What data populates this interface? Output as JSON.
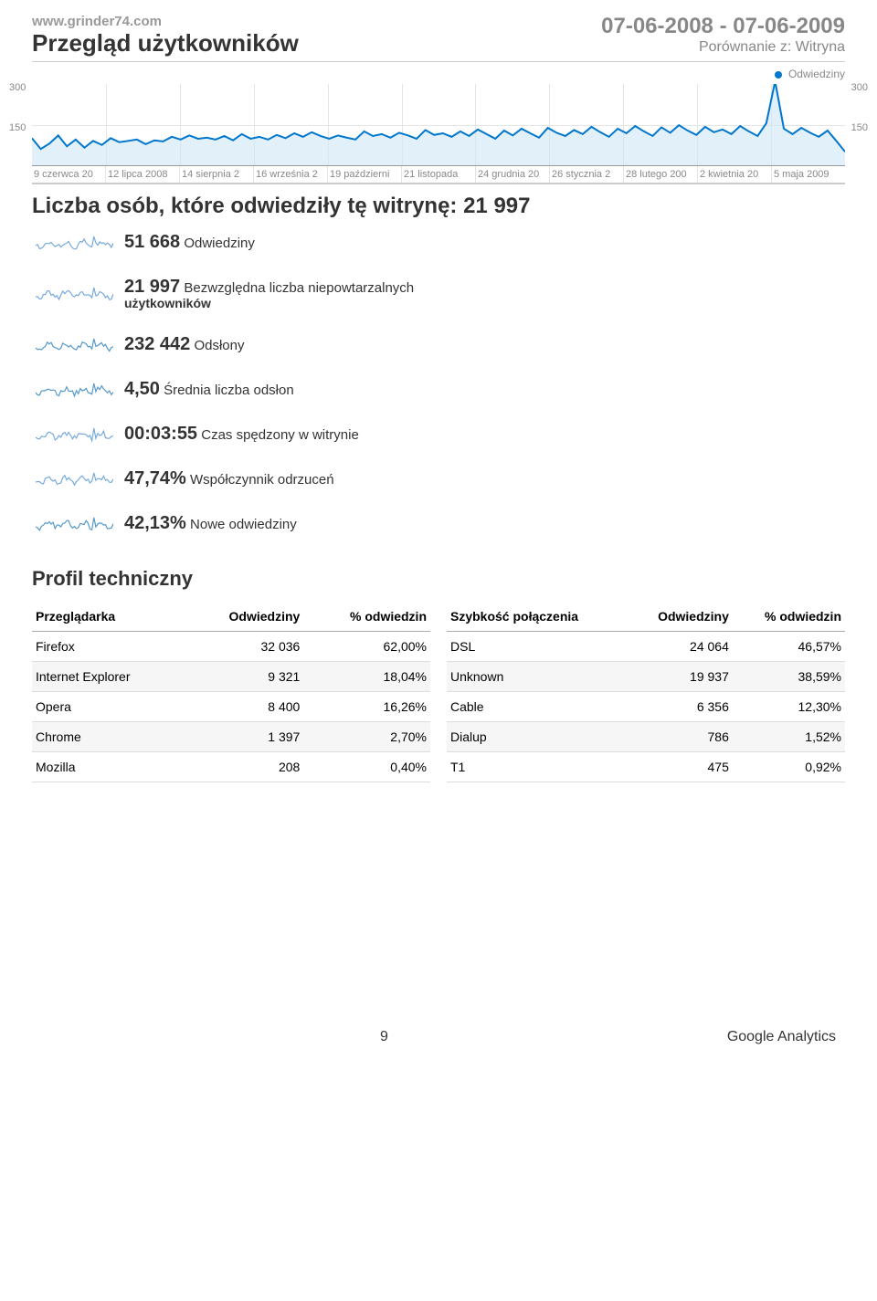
{
  "header": {
    "site_url": "www.grinder74.com",
    "title": "Przegląd użytkowników",
    "date_range": "07-06-2008 - 07-06-2009",
    "compare": "Porównanie z: Witryna"
  },
  "legend": {
    "label": "Odwiedziny"
  },
  "chart": {
    "type": "line",
    "ylim": [
      0,
      300
    ],
    "yticks": [
      150,
      300
    ],
    "series_color": "#0077cc",
    "fill_color": "#cfe6f5",
    "grid_color": "#e5e5e5",
    "x_labels": [
      "9 czerwca 20",
      "12 lipca 2008",
      "14 sierpnia 2",
      "16 września 2",
      "19 październi",
      "21 listopada",
      "24 grudnia 20",
      "26 stycznia 2",
      "28 lutego 200",
      "2 kwietnia 20",
      "5 maja 2009"
    ],
    "values": [
      100,
      60,
      80,
      110,
      70,
      95,
      65,
      90,
      75,
      100,
      85,
      90,
      95,
      78,
      92,
      88,
      105,
      95,
      110,
      98,
      102,
      95,
      108,
      92,
      115,
      98,
      105,
      95,
      112,
      100,
      118,
      105,
      122,
      108,
      98,
      110,
      102,
      95,
      125,
      108,
      115,
      102,
      120,
      110,
      98,
      130,
      112,
      118,
      105,
      125,
      108,
      132,
      115,
      98,
      128,
      110,
      135,
      118,
      102,
      138,
      120,
      108,
      130,
      115,
      142,
      122,
      105,
      135,
      118,
      145,
      125,
      108,
      140,
      120,
      148,
      128,
      112,
      142,
      122,
      132,
      115,
      145,
      125,
      108,
      155,
      310,
      135,
      115,
      138,
      120,
      105,
      128,
      90,
      50
    ]
  },
  "headline": "Liczba osób, które odwiedziły tę witrynę: 21 997",
  "metrics": [
    {
      "value": "51 668",
      "label": "Odwiedziny",
      "spark_color": "#77aadd"
    },
    {
      "value": "21 997",
      "label": "Bezwzględna liczba niepowtarzalnych",
      "sub": "użytkowników",
      "spark_color": "#77aadd"
    },
    {
      "value": "232 442",
      "label": "Odsłony",
      "spark_color": "#5599cc"
    },
    {
      "value": "4,50",
      "label": "Średnia liczba odsłon",
      "spark_color": "#5599cc"
    },
    {
      "value": "00:03:55",
      "label": "Czas spędzony w witrynie",
      "spark_color": "#77aadd"
    },
    {
      "value": "47,74%",
      "label": "Współczynnik odrzuceń",
      "spark_color": "#77aadd"
    },
    {
      "value": "42,13%",
      "label": "Nowe odwiedziny",
      "spark_color": "#5599cc"
    }
  ],
  "section_title": "Profil techniczny",
  "browser_table": {
    "columns": [
      "Przeglądarka",
      "Odwiedziny",
      "% odwiedzin"
    ],
    "rows": [
      [
        "Firefox",
        "32 036",
        "62,00%"
      ],
      [
        "Internet Explorer",
        "9 321",
        "18,04%"
      ],
      [
        "Opera",
        "8 400",
        "16,26%"
      ],
      [
        "Chrome",
        "1 397",
        "2,70%"
      ],
      [
        "Mozilla",
        "208",
        "0,40%"
      ]
    ]
  },
  "connection_table": {
    "columns": [
      "Szybkość połączenia",
      "Odwiedziny",
      "% odwiedzin"
    ],
    "rows": [
      [
        "DSL",
        "24 064",
        "46,57%"
      ],
      [
        "Unknown",
        "19 937",
        "38,59%"
      ],
      [
        "Cable",
        "6 356",
        "12,30%"
      ],
      [
        "Dialup",
        "786",
        "1,52%"
      ],
      [
        "T1",
        "475",
        "0,92%"
      ]
    ]
  },
  "footer": {
    "page": "9",
    "brand": "Google Analytics"
  }
}
